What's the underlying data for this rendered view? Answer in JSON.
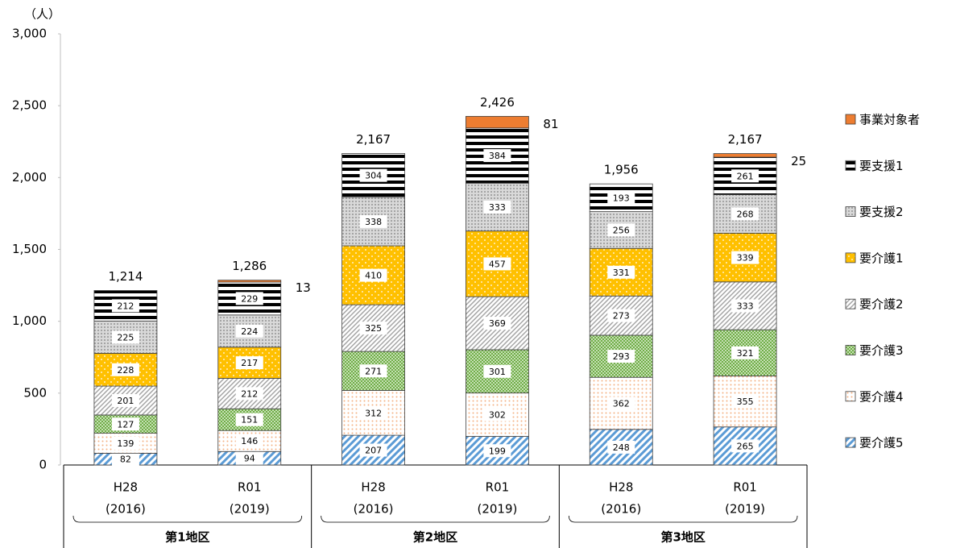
{
  "chart_data": {
    "type": "stacked_bar",
    "y_unit_label": "（人）",
    "categories": [
      [
        "H28",
        "(2016)"
      ],
      [
        "R01",
        "(2019)"
      ],
      [
        "H28",
        "(2016)"
      ],
      [
        "R01",
        "(2019)"
      ],
      [
        "H28",
        "(2016)"
      ],
      [
        "R01",
        "(2019)"
      ]
    ],
    "groups": [
      "第1地区",
      "第2地区",
      "第3地区"
    ],
    "series": [
      {
        "name": "要介護5",
        "color": "#5b9bd5",
        "pattern": "wide-diagonal",
        "values": [
          82,
          94,
          207,
          199,
          248,
          265
        ]
      },
      {
        "name": "要介護4",
        "color": "#f4b183",
        "pattern": "dots",
        "values": [
          139,
          146,
          312,
          302,
          362,
          355
        ]
      },
      {
        "name": "要介護3",
        "color": "#70ad47",
        "pattern": "checker",
        "values": [
          127,
          151,
          271,
          301,
          293,
          321
        ]
      },
      {
        "name": "要介護2",
        "color": "#a6a6a6",
        "pattern": "thin-diagonal",
        "values": [
          201,
          212,
          325,
          369,
          273,
          333
        ]
      },
      {
        "name": "要介護1",
        "color": "#ffc000",
        "pattern": "light-dots",
        "values": [
          228,
          217,
          410,
          457,
          331,
          339
        ]
      },
      {
        "name": "要支援2",
        "color": "#7f7f7f",
        "pattern": "grid-dots",
        "values": [
          225,
          224,
          338,
          333,
          256,
          268
        ]
      },
      {
        "name": "要支援1",
        "color": "#000000",
        "pattern": "horizontal",
        "values": [
          212,
          229,
          304,
          384,
          193,
          261
        ]
      },
      {
        "name": "事業対象者",
        "color": "#ed7d31",
        "pattern": "solid",
        "label_outside": true,
        "values": [
          null,
          13,
          null,
          81,
          null,
          25
        ]
      }
    ],
    "total_labels": [
      "1,214",
      "1,286",
      "2,167",
      "2,426",
      "1,956",
      "2,167"
    ],
    "ylim": [
      0,
      3000
    ],
    "yticks": [
      0,
      500,
      {
        "value": 1000,
        "label": "1,000"
      },
      {
        "value": 1500,
        "label": "1,500"
      },
      {
        "value": 2000,
        "label": "2,000"
      },
      {
        "value": 2500,
        "label": "2,500"
      },
      {
        "value": 3000,
        "label": "3,000"
      }
    ],
    "legend": "right",
    "legend_order": "reversed",
    "grid": false
  }
}
